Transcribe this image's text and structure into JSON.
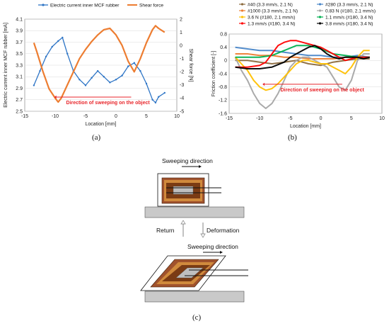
{
  "panel_a": {
    "caption": "(a)",
    "annotation": "Direction of sweeping on the object",
    "chart_data": {
      "type": "line",
      "xlabel": "Location [mm]",
      "ylabel_left": "Electric current inner MCF rubber [mA]",
      "ylabel_right": "Shear force [N]",
      "xlim": [
        -15,
        10
      ],
      "ylim_left": [
        2.5,
        4.1
      ],
      "ylim_right": [
        -5,
        2
      ],
      "x_ticks": [
        "-15",
        "-10",
        "-5",
        "0",
        "5",
        "10"
      ],
      "y_ticks_left": [
        "2.5",
        "2.7",
        "2.9",
        "3.1",
        "3.3",
        "3.5",
        "3.7",
        "3.9",
        "4.1"
      ],
      "y_ticks_right": [
        "-5",
        "-4",
        "-3",
        "-2",
        "-1",
        "0",
        "1",
        "2"
      ],
      "series": [
        {
          "name": "Electric current inner MCF rubber",
          "axis": "left",
          "color": "#2e75c6",
          "x": [
            -13.5,
            -12.5,
            -11.5,
            -10.5,
            -9.5,
            -8.8,
            -8,
            -7,
            -6,
            -5,
            -4,
            -3,
            -2,
            -1,
            0,
            1,
            2,
            3,
            4,
            5,
            6,
            6.5,
            7,
            8
          ],
          "y": [
            2.95,
            3.2,
            3.45,
            3.62,
            3.72,
            3.78,
            3.5,
            3.2,
            3.05,
            2.95,
            3.08,
            3.2,
            3.1,
            3.0,
            3.05,
            3.12,
            3.28,
            3.34,
            3.2,
            2.98,
            2.7,
            2.65,
            2.75,
            2.82
          ]
        },
        {
          "name": "Shear force",
          "axis": "right",
          "color": "#ed7d31",
          "x": [
            -13.5,
            -13,
            -12,
            -11,
            -10,
            -9.5,
            -9,
            -8,
            -7,
            -6,
            -5,
            -4,
            -3,
            -2,
            -1,
            0,
            1,
            2,
            3,
            4,
            5,
            6,
            6.5,
            7,
            8
          ],
          "y": [
            0.2,
            -0.5,
            -2.0,
            -3.3,
            -4.0,
            -4.3,
            -4.0,
            -3.0,
            -2.0,
            -1.0,
            -0.3,
            0.3,
            0.8,
            1.2,
            1.3,
            0.8,
            0,
            -1.2,
            -2.0,
            -1.0,
            0.2,
            1.2,
            1.5,
            1.3,
            1.0
          ]
        }
      ]
    }
  },
  "panel_b": {
    "caption": "(b)",
    "annotation": "Direction of sweeping on the object",
    "chart_data": {
      "type": "line",
      "xlabel": "Location [mm]",
      "ylabel": "Friction coefficient [-]",
      "xlim": [
        -15,
        10
      ],
      "ylim": [
        -1.6,
        0.8
      ],
      "x_ticks": [
        "-15",
        "-10",
        "-5",
        "0",
        "5",
        "10"
      ],
      "y_ticks": [
        "-1.6",
        "-1.2",
        "-0.8",
        "-0.4",
        "0",
        "0.4",
        "0.8"
      ],
      "series": [
        {
          "name": "#40 (3.3 mm/s, 2.1  N)",
          "color": "#8b6a3e",
          "x": [
            -14,
            -12,
            -10,
            -8,
            -6,
            -4,
            -2,
            0,
            2,
            4,
            6,
            8
          ],
          "y": [
            0.0,
            0.0,
            -0.05,
            -0.1,
            -0.05,
            0.0,
            -0.1,
            -0.15,
            -0.05,
            0.0,
            0.05,
            0.05
          ]
        },
        {
          "name": "#280 (3.3 mm/s, 2.1  N)",
          "color": "#4a86c8",
          "x": [
            -14,
            -12,
            -10,
            -8,
            -6,
            -4,
            -2,
            0,
            2,
            4,
            6,
            8
          ],
          "y": [
            0.4,
            0.35,
            0.3,
            0.3,
            0.25,
            0.2,
            0.15,
            0.15,
            0.1,
            0.1,
            0.15,
            0.1
          ]
        },
        {
          "name": "#1000 (3.3 mm/s, 2.1  N)",
          "color": "#ed7d31",
          "x": [
            -14,
            -12,
            -10,
            -8,
            -6,
            -4,
            -2,
            0,
            2,
            4,
            6,
            8
          ],
          "y": [
            0.2,
            0.2,
            0.15,
            0.15,
            0.1,
            0.1,
            0.05,
            0.05,
            0.05,
            0.1,
            0.1,
            0.1
          ]
        },
        {
          "name": "0.83 N (#180, 2.1 mm/s)",
          "color": "#a5a5a5",
          "x": [
            -14,
            -13,
            -12,
            -11,
            -10,
            -9,
            -8,
            -7,
            -6,
            -5,
            -4,
            -3,
            -2,
            -1,
            0,
            1,
            2,
            3,
            4,
            5,
            6,
            7,
            8
          ],
          "y": [
            0.1,
            -0.3,
            -0.6,
            -1.0,
            -1.3,
            -1.45,
            -1.3,
            -1.0,
            -0.6,
            -0.2,
            0.0,
            0.1,
            0.1,
            0.0,
            -0.1,
            -0.2,
            -0.5,
            -0.8,
            -0.9,
            -0.6,
            0.0,
            0.2,
            0.2
          ]
        },
        {
          "name": "3.6 N (#180, 2.1 mm/s)",
          "color": "#ffc000",
          "x": [
            -14,
            -13,
            -12,
            -11,
            -10,
            -9,
            -8,
            -7,
            -6,
            -5,
            -4,
            -3,
            -2,
            -1,
            0,
            1,
            2,
            3,
            4,
            5,
            6,
            7,
            8
          ],
          "y": [
            0.1,
            -0.1,
            -0.3,
            -0.6,
            -0.8,
            -0.9,
            -0.85,
            -0.7,
            -0.5,
            -0.3,
            -0.1,
            0.0,
            0.0,
            -0.05,
            -0.1,
            -0.1,
            -0.2,
            -0.3,
            -0.4,
            -0.2,
            0.1,
            0.3,
            0.3
          ]
        },
        {
          "name": "1.1 mm/s (#180, 3.4 N)",
          "color": "#00b050",
          "x": [
            -14,
            -12,
            -10,
            -8,
            -6,
            -4,
            -2,
            0,
            2,
            4,
            6,
            8
          ],
          "y": [
            0.1,
            0.1,
            0.1,
            0.15,
            0.3,
            0.45,
            0.45,
            0.35,
            0.2,
            0.15,
            0.1,
            0.1
          ]
        },
        {
          "name": "1.3 mm/s (#180, 3.4 N)",
          "color": "#ff0000",
          "x": [
            -14,
            -12,
            -10,
            -9,
            -8,
            -7,
            -6,
            -5,
            -4,
            -3,
            -2,
            -1,
            0,
            1,
            2,
            3,
            4,
            5,
            6,
            7,
            8
          ],
          "y": [
            -0.2,
            -0.2,
            -0.15,
            -0.05,
            0.2,
            0.45,
            0.55,
            0.6,
            0.6,
            0.55,
            0.5,
            0.45,
            0.4,
            0.3,
            0.2,
            0.1,
            0.0,
            0.05,
            0.1,
            0.1,
            0.1
          ]
        },
        {
          "name": "3.8 mm/s (#180, 3.4 N)",
          "color": "#000000",
          "x": [
            -14,
            -12,
            -10,
            -8,
            -6,
            -5,
            -4,
            -3,
            -2,
            -1,
            0,
            1,
            2,
            3,
            4,
            5,
            6,
            7,
            8
          ],
          "y": [
            -0.2,
            -0.25,
            -0.25,
            -0.2,
            -0.05,
            0.1,
            0.2,
            0.3,
            0.4,
            0.45,
            0.35,
            0.2,
            0.1,
            0.05,
            0.1,
            0.1,
            0.1,
            0.05,
            0.1
          ]
        }
      ]
    }
  },
  "panel_c": {
    "caption": "(c)",
    "sweep_top": "Sweeping direction",
    "sweep_bottom": "Sweeping direction",
    "return_label": "Return",
    "deformation_label": "Deformation"
  }
}
